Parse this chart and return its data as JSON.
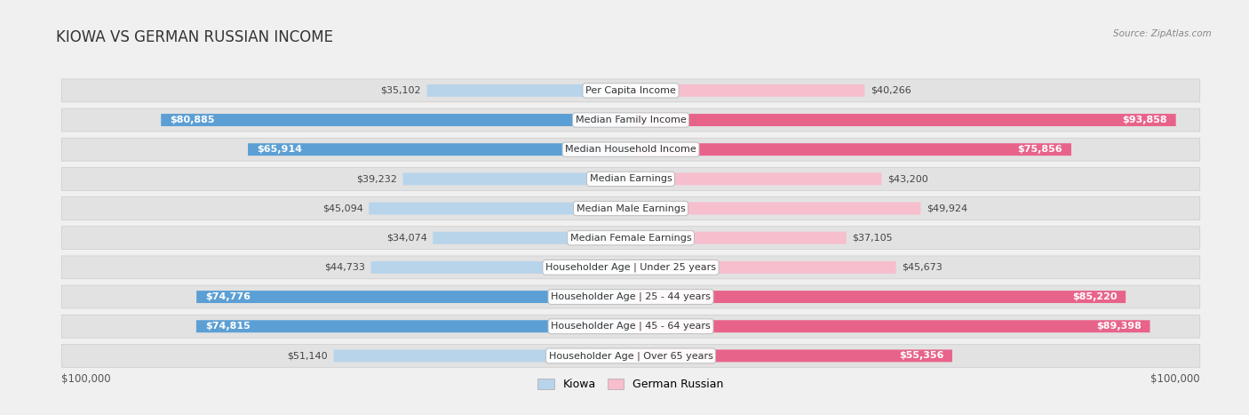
{
  "title": "KIOWA VS GERMAN RUSSIAN INCOME",
  "source": "Source: ZipAtlas.com",
  "categories": [
    "Per Capita Income",
    "Median Family Income",
    "Median Household Income",
    "Median Earnings",
    "Median Male Earnings",
    "Median Female Earnings",
    "Householder Age | Under 25 years",
    "Householder Age | 25 - 44 years",
    "Householder Age | 45 - 64 years",
    "Householder Age | Over 65 years"
  ],
  "kiowa_values": [
    35102,
    80885,
    65914,
    39232,
    45094,
    34074,
    44733,
    74776,
    74815,
    51140
  ],
  "german_russian_values": [
    40266,
    93858,
    75856,
    43200,
    49924,
    37105,
    45673,
    85220,
    89398,
    55356
  ],
  "kiowa_labels": [
    "$35,102",
    "$80,885",
    "$65,914",
    "$39,232",
    "$45,094",
    "$34,074",
    "$44,733",
    "$74,776",
    "$74,815",
    "$51,140"
  ],
  "german_russian_labels": [
    "$40,266",
    "$93,858",
    "$75,856",
    "$43,200",
    "$49,924",
    "$37,105",
    "$45,673",
    "$85,220",
    "$89,398",
    "$55,356"
  ],
  "kiowa_color_light": "#b8d4eb",
  "kiowa_color_dark": "#5b9fd4",
  "german_russian_color_light": "#f7bece",
  "german_russian_color_dark": "#e8638a",
  "max_value": 100000,
  "x_label_left": "$100,000",
  "x_label_right": "$100,000",
  "legend_kiowa": "Kiowa",
  "legend_german_russian": "German Russian",
  "bg_color": "#f0f0f0",
  "row_bg_color": "#e8e8e8",
  "title_fontsize": 12,
  "label_fontsize": 8,
  "category_fontsize": 8,
  "kiowa_threshold": 55000,
  "gr_threshold": 55000
}
